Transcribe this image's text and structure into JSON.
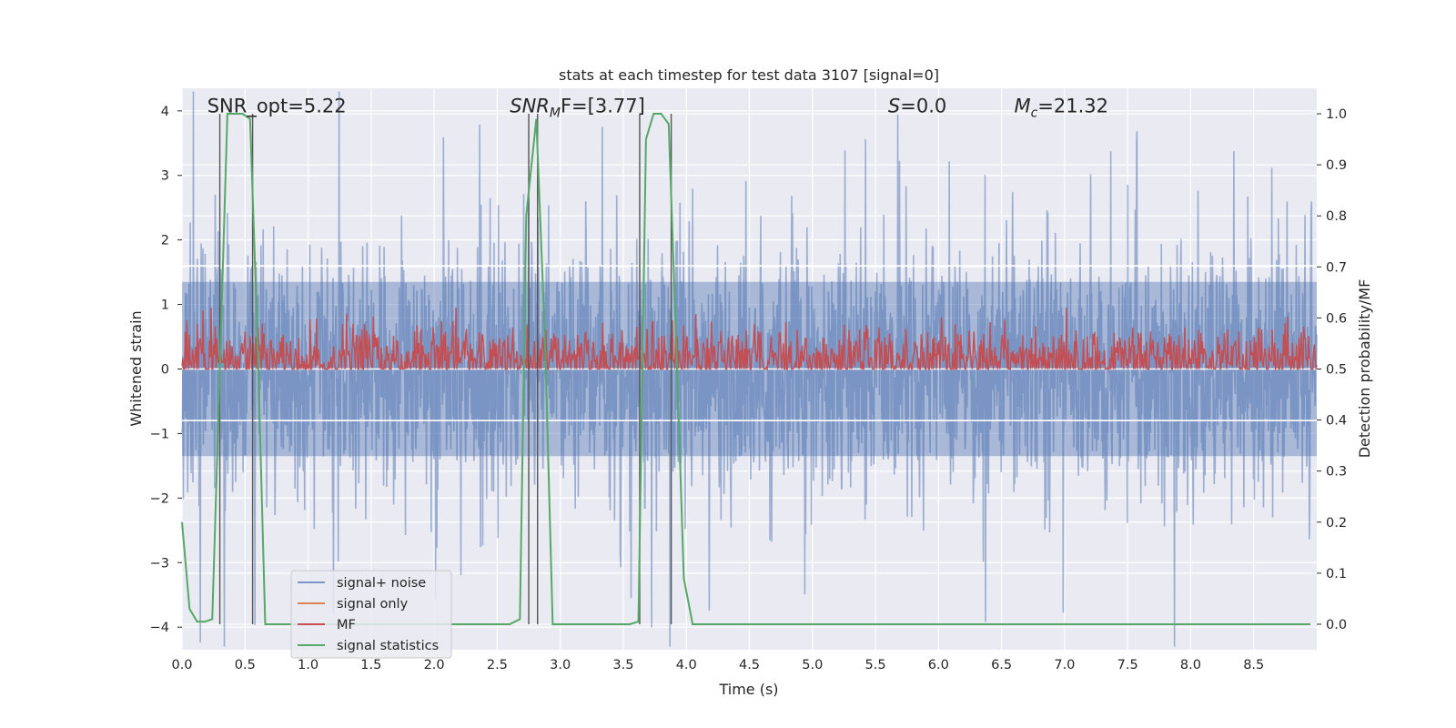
{
  "chart_data": {
    "type": "line",
    "title": "stats at each timestep for test data 3107 [signal=0]",
    "xlabel": "Time (s)",
    "ylabel": "Whitened strain",
    "y2label": "Detection probability/MF",
    "xlim": [
      0.0,
      9.0
    ],
    "ylim": [
      -4.35,
      4.35
    ],
    "y2lim": [
      -0.05,
      1.05
    ],
    "xticks": [
      "0.0",
      "0.5",
      "1.0",
      "1.5",
      "2.0",
      "2.5",
      "3.0",
      "3.5",
      "4.0",
      "4.5",
      "5.0",
      "5.5",
      "6.0",
      "6.5",
      "7.0",
      "7.5",
      "8.0",
      "8.5"
    ],
    "yticks": [
      "4",
      "3",
      "2",
      "1",
      "0",
      "−1",
      "−2",
      "−3",
      "−4"
    ],
    "y2ticks": [
      "1.0",
      "0.9",
      "0.8",
      "0.7",
      "0.6",
      "0.5",
      "0.4",
      "0.3",
      "0.2",
      "0.1",
      "0.0"
    ],
    "grid": true,
    "legend_position": "lower-left",
    "annotations": [
      {
        "text": "SNR_opt=5.22",
        "x": 0.2,
        "y": 4.1
      },
      {
        "text": "SNR",
        "sub": "M",
        "rest": "F=[3.77]",
        "x": 2.6,
        "y": 4.1
      },
      {
        "text": "S",
        "rest": "=0.0",
        "x": 5.6,
        "y": 4.1
      },
      {
        "text": "M",
        "sub": "c",
        "rest": "=21.32",
        "x": 6.6,
        "y": 4.1
      }
    ],
    "series": [
      {
        "name": "signal+ noise",
        "color": "#4c72b0",
        "opacity": 0.5,
        "axis": "y",
        "kind": "noise",
        "amplitude": 1.6
      },
      {
        "name": "signal only",
        "color": "#dd8452",
        "axis": "y",
        "values": []
      },
      {
        "name": "MF",
        "color": "#c44e52",
        "axis": "y2",
        "kind": "noise",
        "center": 0.52,
        "amplitude": 0.06
      },
      {
        "name": "signal statistics",
        "color": "#55a868",
        "axis": "y2",
        "x": [
          0.0,
          0.06,
          0.12,
          0.18,
          0.24,
          0.3,
          0.36,
          0.42,
          0.48,
          0.54,
          0.6,
          0.66,
          0.72,
          2.6,
          2.68,
          2.73,
          2.81,
          2.88,
          2.94,
          3.0,
          3.55,
          3.62,
          3.68,
          3.74,
          3.8,
          3.86,
          3.92,
          3.98,
          4.05,
          8.95
        ],
        "y": [
          0.2,
          0.03,
          0.005,
          0.005,
          0.01,
          0.5,
          1.0,
          1.0,
          1.0,
          0.99,
          0.55,
          0.0,
          0.0,
          0.0,
          0.01,
          0.8,
          0.99,
          0.55,
          0.0,
          0.0,
          0.0,
          0.005,
          0.95,
          1.0,
          1.0,
          0.98,
          0.55,
          0.09,
          0.0,
          0.0
        ]
      }
    ],
    "vertical_markers": [
      0.3,
      0.56,
      2.75,
      2.82,
      3.63,
      3.88
    ],
    "highlight_line_y": [
      1.6,
      -0.8
    ]
  }
}
